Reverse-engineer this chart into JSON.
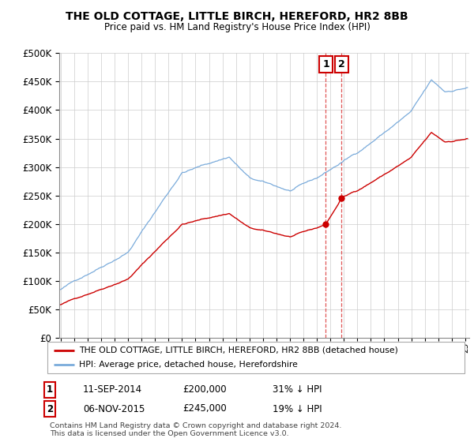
{
  "title": "THE OLD COTTAGE, LITTLE BIRCH, HEREFORD, HR2 8BB",
  "subtitle": "Price paid vs. HM Land Registry's House Price Index (HPI)",
  "legend_line1": "THE OLD COTTAGE, LITTLE BIRCH, HEREFORD, HR2 8BB (detached house)",
  "legend_line2": "HPI: Average price, detached house, Herefordshire",
  "annotation1_label": "1",
  "annotation1_date": "11-SEP-2014",
  "annotation1_price": "£200,000",
  "annotation1_note": "31% ↓ HPI",
  "annotation2_label": "2",
  "annotation2_date": "06-NOV-2015",
  "annotation2_price": "£245,000",
  "annotation2_note": "19% ↓ HPI",
  "footer": "Contains HM Land Registry data © Crown copyright and database right 2024.\nThis data is licensed under the Open Government Licence v3.0.",
  "hpi_color": "#7aabdb",
  "price_color": "#cc0000",
  "marker1_y": 200000,
  "marker2_y": 245000,
  "ylim": [
    0,
    500000
  ],
  "xlim_start": 1995.0,
  "xlim_end": 2025.3
}
